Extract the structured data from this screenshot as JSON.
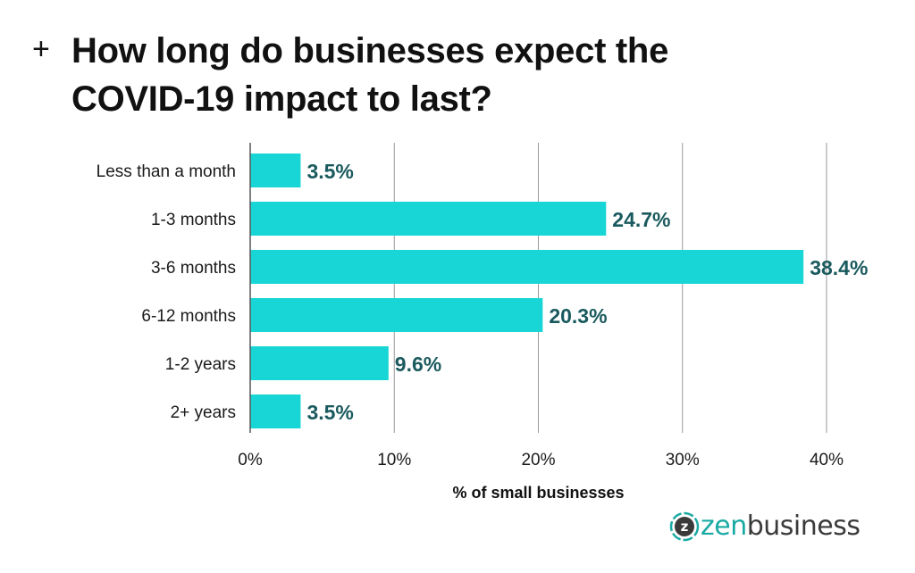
{
  "header": {
    "plus_glyph": "+",
    "title": "How long do businesses expect the COVID-19 impact to last?"
  },
  "brand": {
    "logo_text_accent": "zen",
    "logo_text_rest": "business",
    "logo_mark": "z",
    "accent_color": "#1aaaa3"
  },
  "chart_data": {
    "type": "bar",
    "orientation": "horizontal",
    "title": "How long do businesses expect the COVID-19 impact to last?",
    "categories": [
      "Less than a month",
      "1-3 months",
      "3-6 months",
      "6-12 months",
      "1-2 years",
      "2+ years"
    ],
    "values": [
      3.5,
      24.7,
      38.4,
      20.3,
      9.6,
      3.5
    ],
    "value_labels": [
      "3.5%",
      "24.7%",
      "38.4%",
      "20.3%",
      "9.6%",
      "3.5%"
    ],
    "xlabel": "% of small businesses",
    "ylabel": "",
    "xlim": [
      0,
      40
    ],
    "xticks": [
      0,
      10,
      20,
      30,
      40
    ],
    "xtick_labels": [
      "0%",
      "10%",
      "20%",
      "30%",
      "40%"
    ],
    "grid": "vertical",
    "legend": "none",
    "bar_color": "#18d6d6",
    "label_color": "#1a5a5e"
  }
}
